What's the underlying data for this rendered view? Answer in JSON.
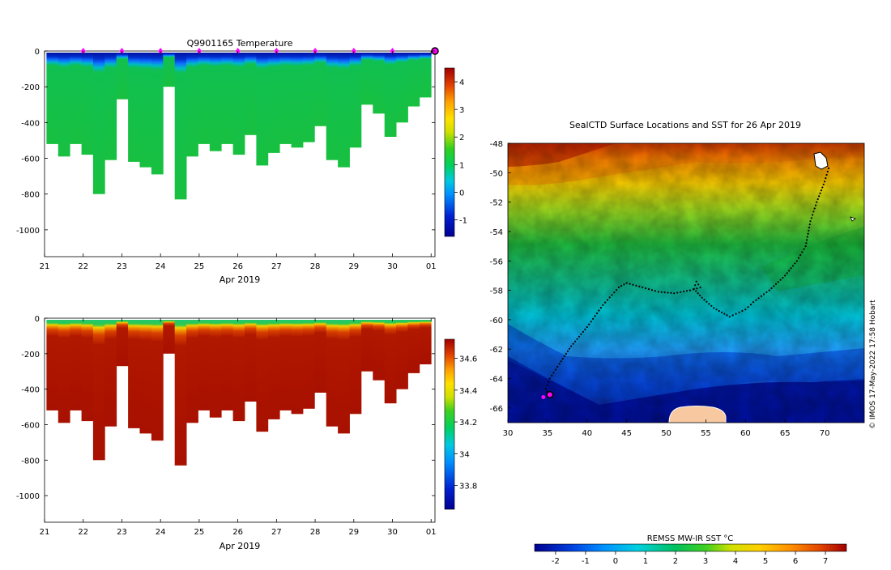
{
  "profile_x_ticks": [
    "21",
    "22",
    "23",
    "24",
    "25",
    "26",
    "27",
    "28",
    "29",
    "30",
    "01"
  ],
  "profile_x_title": "Apr 2019",
  "depth_ticks": [
    "0",
    "-200",
    "-400",
    "-600",
    "-800",
    "-1000"
  ],
  "watermark": "© IMOS 17-May-2022 17:58 Hobart",
  "chart_data": [
    {
      "type": "heatmap",
      "title": "Q9901165  Temperature",
      "xlabel": "Apr 2019",
      "ylabel": "",
      "xlim": [
        21,
        31.1
      ],
      "ylim": [
        -1150,
        0
      ],
      "surface_markers_x": [
        22,
        23,
        24,
        25,
        26,
        27,
        28,
        29,
        30
      ],
      "colorbar": {
        "min": -1.6,
        "max": 4.5,
        "ticks": [
          "-1",
          "0",
          "1",
          "2",
          "3",
          "4"
        ]
      },
      "profile_max_depths": [
        520,
        590,
        520,
        580,
        800,
        610,
        270,
        620,
        650,
        690,
        200,
        830,
        590,
        520,
        560,
        520,
        580,
        470,
        640,
        570,
        520,
        540,
        510,
        420,
        610,
        650,
        540,
        300,
        350,
        480,
        400,
        310,
        260
      ]
    },
    {
      "type": "heatmap",
      "title": "",
      "xlabel": "Apr 2019",
      "ylabel": "",
      "xlim": [
        21,
        31.1
      ],
      "ylim": [
        -1150,
        0
      ],
      "colorbar": {
        "min": 33.65,
        "max": 34.72,
        "ticks": [
          "33.8",
          "34",
          "34.2",
          "34.4",
          "34.6"
        ]
      },
      "profile_max_depths": [
        520,
        590,
        520,
        580,
        800,
        610,
        270,
        620,
        650,
        690,
        200,
        830,
        590,
        520,
        560,
        520,
        580,
        470,
        640,
        570,
        520,
        540,
        510,
        420,
        610,
        650,
        540,
        300,
        350,
        480,
        400,
        310,
        260
      ]
    },
    {
      "type": "heatmap",
      "title": "SealCTD Surface Locations and SST for 26 Apr 2019",
      "xlabel": "",
      "ylabel": "",
      "x_ticks": [
        "30",
        "35",
        "40",
        "45",
        "50",
        "55",
        "60",
        "65",
        "70"
      ],
      "y_ticks": [
        "-48",
        "-50",
        "-52",
        "-54",
        "-56",
        "-58",
        "-60",
        "-62",
        "-64",
        "-66"
      ],
      "xlim": [
        30,
        75
      ],
      "ylim": [
        -67,
        -48
      ],
      "colorbar": {
        "label": "REMSS MW-IR SST °C",
        "min": -2.7,
        "max": 7.7,
        "ticks": [
          "-2",
          "-1",
          "0",
          "1",
          "2",
          "3",
          "4",
          "5",
          "6",
          "7"
        ]
      },
      "track_lon_lat": [
        [
          70.5,
          -49.7
        ],
        [
          70,
          -50.6
        ],
        [
          69,
          -52
        ],
        [
          68.2,
          -53.3
        ],
        [
          67.6,
          -55
        ],
        [
          66.5,
          -56
        ],
        [
          65,
          -57
        ],
        [
          63,
          -58
        ],
        [
          61,
          -58.8
        ],
        [
          60,
          -59.3
        ],
        [
          58,
          -59.8
        ],
        [
          56,
          -59.2
        ],
        [
          54.5,
          -58.5
        ],
        [
          53.5,
          -57.9
        ],
        [
          53.8,
          -57.4
        ],
        [
          54.3,
          -57.8
        ],
        [
          53,
          -58
        ],
        [
          51,
          -58.2
        ],
        [
          49,
          -58.1
        ],
        [
          47,
          -57.8
        ],
        [
          45,
          -57.5
        ],
        [
          44,
          -57.8
        ],
        [
          42,
          -59
        ],
        [
          40,
          -60.5
        ],
        [
          38,
          -61.8
        ],
        [
          36.5,
          -63
        ],
        [
          35.3,
          -64
        ],
        [
          34.8,
          -64.7
        ],
        [
          35.1,
          -65.1
        ]
      ],
      "float_position_lon_lat": [
        35.3,
        -65.1
      ],
      "land_label_free": true
    }
  ]
}
